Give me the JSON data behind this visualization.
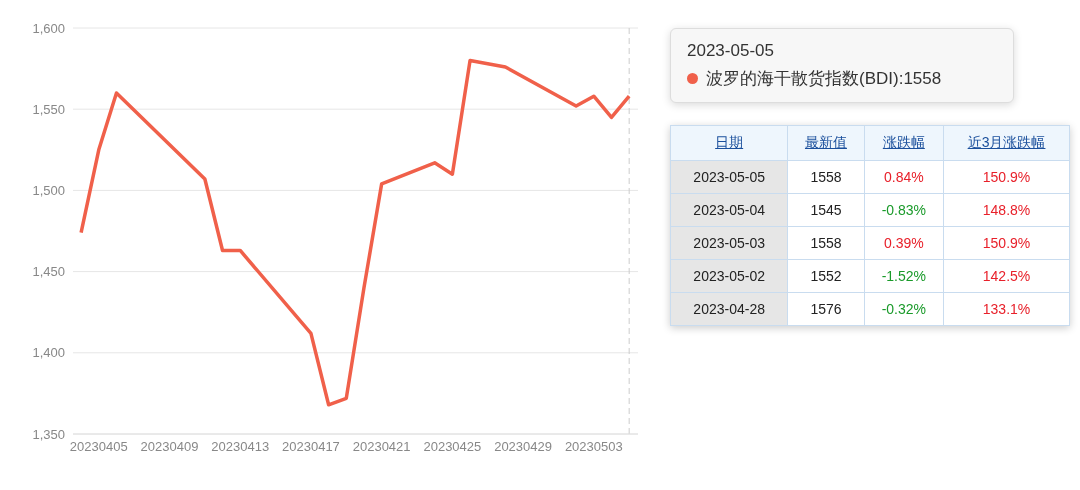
{
  "chart_data": {
    "type": "line",
    "x": [
      "2023-04-04",
      "2023-04-05",
      "2023-04-06",
      "2023-04-11",
      "2023-04-12",
      "2023-04-13",
      "2023-04-17",
      "2023-04-18",
      "2023-04-19",
      "2023-04-20",
      "2023-04-21",
      "2023-04-24",
      "2023-04-25",
      "2023-04-26",
      "2023-04-27",
      "2023-04-28",
      "2023-05-02",
      "2023-05-03",
      "2023-05-04",
      "2023-05-05"
    ],
    "series": [
      {
        "color": "#f0604a",
        "values": [
          1474,
          1525,
          1560,
          1507,
          1463,
          1463,
          1412,
          1368,
          1372,
          1440,
          1504,
          1517,
          1510,
          1580,
          1578,
          1576,
          1552,
          1558,
          1545,
          1558
        ]
      }
    ],
    "xlim": [
      "2023-04-03T13:00",
      "2023-05-05T12:00"
    ],
    "xticks": [
      {
        "value": "2023-04-05",
        "label": "20230405"
      },
      {
        "value": "2023-04-09",
        "label": "20230409"
      },
      {
        "value": "2023-04-13",
        "label": "20230413"
      },
      {
        "value": "2023-04-17",
        "label": "20230417"
      },
      {
        "value": "2023-04-21",
        "label": "20230421"
      },
      {
        "value": "2023-04-25",
        "label": "20230425"
      },
      {
        "value": "2023-04-29",
        "label": "20230429"
      },
      {
        "value": "2023-05-03",
        "label": "20230503"
      }
    ],
    "ylim": [
      1350,
      1600
    ],
    "yticks": [
      {
        "value": 1350,
        "label": "1,350"
      },
      {
        "value": 1400,
        "label": "1,400"
      },
      {
        "value": 1450,
        "label": "1,450"
      },
      {
        "value": 1500,
        "label": "1,500"
      },
      {
        "value": 1550,
        "label": "1,550"
      },
      {
        "value": 1600,
        "label": "1,600"
      }
    ],
    "grid": "y",
    "marker": "none",
    "line_style": "solid",
    "ref_lines": [
      {
        "axis": "x",
        "value": "2023-05-05",
        "color": "#cccccc",
        "line_style": "dashed"
      }
    ],
    "annotations": [
      "2023-05-05\n波罗的海干散货指数(BDI):1558",
      "日期",
      "最新值",
      "涨跌幅",
      "近3月涨跌幅",
      "2023-05-05",
      "1558",
      "0.84%",
      "150.9%",
      "2023-05-04",
      "1545",
      "-0.83%",
      "148.8%",
      "2023-05-03",
      "1558",
      "0.39%",
      "150.9%",
      "2023-05-02",
      "1552",
      "-1.52%",
      "142.5%",
      "2023-04-28",
      "1576",
      "-0.32%",
      "133.1%"
    ]
  }
}
